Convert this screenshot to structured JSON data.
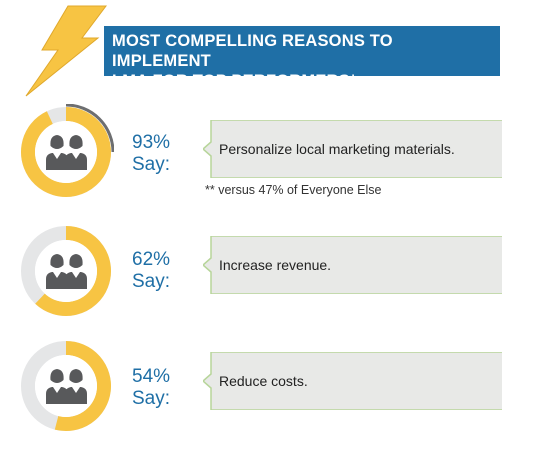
{
  "header": {
    "title": "MOST COMPELLING REASONS TO IMPLEMENT\nLMA FOR TOP PERFORMERS*",
    "bar_color": "#1f6fa6",
    "bolt_color": "#f7c443"
  },
  "colors": {
    "ring_fill": "#f7c443",
    "ring_track": "#e5e6e7",
    "ring_outline": "#6d6e70",
    "people_icon": "#58595b",
    "percent_text": "#1f6fa6",
    "callout_bg": "#e8e9e7",
    "callout_border": "#b7d59a"
  },
  "chart_data": {
    "type": "pie",
    "title": "MOST COMPELLING REASONS TO IMPLEMENT LMA FOR TOP PERFORMERS*",
    "categories": [
      "Personalize local marketing materials.",
      "Increase revenue.",
      "Reduce costs."
    ],
    "values": [
      93,
      62,
      54
    ],
    "unit": "%"
  },
  "items": [
    {
      "percent": "93%",
      "say": "Say:",
      "reason": "Personalize local marketing materials.",
      "value": 93
    },
    {
      "percent": "62%",
      "say": "Say:",
      "reason": "Increase revenue.",
      "value": 62
    },
    {
      "percent": "54%",
      "say": "Say:",
      "reason": "Reduce costs.",
      "value": 54
    }
  ],
  "footnote": "** versus 47% of Everyone Else"
}
